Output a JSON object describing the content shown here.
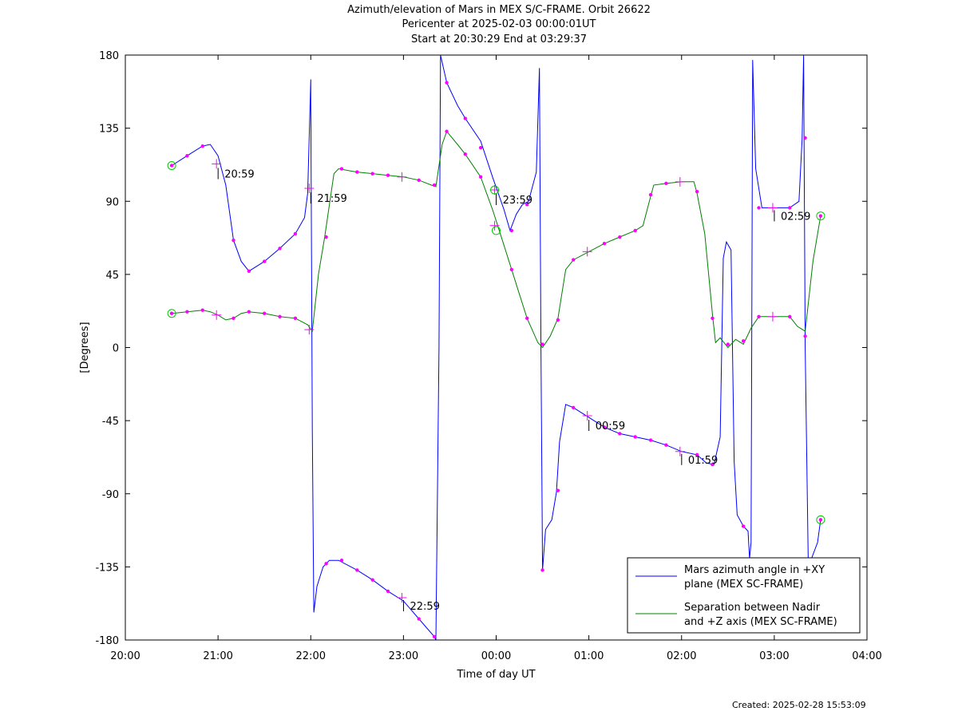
{
  "title": {
    "line1": "Azimuth/elevation of Mars in MEX S/C-FRAME.  Orbit 26622",
    "line2": "Pericenter at 2025-02-03 00:00:01UT",
    "line3": "Start at 20:30:29 End at 03:29:37"
  },
  "footer": {
    "created": "Created: 2025-02-28 15:53:09"
  },
  "colors": {
    "azimuth": "#0000ff",
    "separation": "#008000",
    "marker": "#ff00ff",
    "endpoint": "#00cc00",
    "axis": "#000000"
  },
  "chart_data": {
    "type": "line",
    "xlabel": "Time of day UT",
    "ylabel": "[Degrees]",
    "xlim": [
      "20:00",
      "04:00"
    ],
    "ylim": [
      -180,
      180
    ],
    "x_ticks": [
      "20:00",
      "21:00",
      "22:00",
      "23:00",
      "00:00",
      "01:00",
      "02:00",
      "03:00",
      "04:00"
    ],
    "y_ticks": [
      180,
      135,
      90,
      45,
      0,
      -45,
      -90,
      -135,
      -180
    ],
    "grid": false,
    "legend_position": "bottom-right",
    "time_labels": [
      {
        "text": "20:59",
        "t": "20:59",
        "y": 112
      },
      {
        "text": "21:59",
        "t": "21:59",
        "y": 97
      },
      {
        "text": "22:59",
        "t": "22:59",
        "y": -154
      },
      {
        "text": "23:59",
        "t": "23:59",
        "y": 96
      },
      {
        "text": "00:59",
        "t": "00:59",
        "y": -43
      },
      {
        "text": "01:59",
        "t": "01:59",
        "y": -64
      },
      {
        "text": "02:59",
        "t": "02:59",
        "y": 86
      }
    ],
    "series": [
      {
        "name": "Mars azimuth angle in +XY plane (MEX SC-FRAME)",
        "color": "#0000ff",
        "legend": [
          "Mars azimuth angle in +XY",
          "plane (MEX SC-FRAME)"
        ],
        "points": [
          [
            "20:30",
            112
          ],
          [
            "20:40",
            118
          ],
          [
            "20:50",
            124
          ],
          [
            "20:55",
            125
          ],
          [
            "21:00",
            118
          ],
          [
            "21:05",
            100
          ],
          [
            "21:10",
            66
          ],
          [
            "21:15",
            53
          ],
          [
            "21:20",
            47
          ],
          [
            "21:30",
            53
          ],
          [
            "21:40",
            61
          ],
          [
            "21:50",
            70
          ],
          [
            "21:56",
            80
          ],
          [
            "21:58",
            95
          ],
          [
            "22:00",
            165
          ],
          [
            "22:00",
            155
          ],
          [
            "22:01",
            -50
          ],
          [
            "22:02",
            -163
          ],
          [
            "22:04",
            -147
          ],
          [
            "22:08",
            -135
          ],
          [
            "22:12",
            -131
          ],
          [
            "22:18",
            -131
          ],
          [
            "22:30",
            -137
          ],
          [
            "22:40",
            -143
          ],
          [
            "22:50",
            -150
          ],
          [
            "23:00",
            -156
          ],
          [
            "23:10",
            -167
          ],
          [
            "23:20",
            -178
          ],
          [
            "23:21",
            -180
          ],
          [
            "23:23",
            0
          ],
          [
            "23:24",
            180
          ],
          [
            "23:28",
            163
          ],
          [
            "23:35",
            149
          ],
          [
            "23:40",
            141
          ],
          [
            "23:50",
            127
          ],
          [
            "23:58",
            104
          ],
          [
            "00:05",
            85
          ],
          [
            "00:09",
            72
          ],
          [
            "00:13",
            82
          ],
          [
            "00:17",
            88
          ],
          [
            "00:21",
            90
          ],
          [
            "00:26",
            108
          ],
          [
            "00:28",
            172
          ],
          [
            "00:29",
            0
          ],
          [
            "00:30",
            -137
          ],
          [
            "00:32",
            -112
          ],
          [
            "00:36",
            -106
          ],
          [
            "00:39",
            -89
          ],
          [
            "00:41",
            -58
          ],
          [
            "00:45",
            -35
          ],
          [
            "00:50",
            -37
          ],
          [
            "00:55",
            -40
          ],
          [
            "01:00",
            -43
          ],
          [
            "01:10",
            -49
          ],
          [
            "01:20",
            -53
          ],
          [
            "01:30",
            -55
          ],
          [
            "01:40",
            -57
          ],
          [
            "01:50",
            -60
          ],
          [
            "02:00",
            -64
          ],
          [
            "02:10",
            -66
          ],
          [
            "02:16",
            -71
          ],
          [
            "02:21",
            -72
          ],
          [
            "02:25",
            -55
          ],
          [
            "02:27",
            55
          ],
          [
            "02:29",
            65
          ],
          [
            "02:32",
            60
          ],
          [
            "02:34",
            -70
          ],
          [
            "02:36",
            -103
          ],
          [
            "02:40",
            -110
          ],
          [
            "02:43",
            -113
          ],
          [
            "02:44",
            -130
          ],
          [
            "02:45",
            -120
          ],
          [
            "02:46",
            177
          ],
          [
            "02:48",
            110
          ],
          [
            "02:52",
            86
          ],
          [
            "03:00",
            86
          ],
          [
            "03:10",
            86
          ],
          [
            "03:16",
            90
          ],
          [
            "03:18",
            128
          ],
          [
            "03:19",
            180
          ],
          [
            "03:20",
            0
          ],
          [
            "03:22",
            -135
          ],
          [
            "03:28",
            -120
          ],
          [
            "03:30",
            -106
          ]
        ]
      },
      {
        "name": "Separation between Nadir and +Z axis (MEX SC-FRAME)",
        "color": "#008000",
        "legend": [
          "Separation between Nadir",
          "and +Z axis (MEX SC-FRAME)"
        ],
        "points": [
          [
            "20:30",
            21
          ],
          [
            "20:40",
            22
          ],
          [
            "20:50",
            23
          ],
          [
            "20:55",
            22
          ],
          [
            "21:00",
            20
          ],
          [
            "21:05",
            17
          ],
          [
            "21:10",
            18
          ],
          [
            "21:15",
            21
          ],
          [
            "21:20",
            22
          ],
          [
            "21:30",
            21
          ],
          [
            "21:40",
            19
          ],
          [
            "21:50",
            18
          ],
          [
            "21:58",
            14
          ],
          [
            "22:01",
            10
          ],
          [
            "22:05",
            45
          ],
          [
            "22:09",
            68
          ],
          [
            "22:15",
            107
          ],
          [
            "22:18",
            110
          ],
          [
            "22:30",
            108
          ],
          [
            "22:40",
            107
          ],
          [
            "22:50",
            106
          ],
          [
            "23:00",
            105
          ],
          [
            "23:10",
            103
          ],
          [
            "23:18",
            100
          ],
          [
            "23:21",
            99
          ],
          [
            "23:25",
            125
          ],
          [
            "23:28",
            133
          ],
          [
            "23:35",
            125
          ],
          [
            "23:40",
            119
          ],
          [
            "23:50",
            105
          ],
          [
            "23:58",
            84
          ],
          [
            "00:05",
            63
          ],
          [
            "00:10",
            48
          ],
          [
            "00:15",
            33
          ],
          [
            "00:20",
            18
          ],
          [
            "00:27",
            3
          ],
          [
            "00:30",
            0
          ],
          [
            "00:35",
            7
          ],
          [
            "00:40",
            18
          ],
          [
            "00:45",
            48
          ],
          [
            "00:50",
            54
          ],
          [
            "01:00",
            59
          ],
          [
            "01:10",
            64
          ],
          [
            "01:20",
            68
          ],
          [
            "01:30",
            72
          ],
          [
            "01:35",
            75
          ],
          [
            "01:40",
            93
          ],
          [
            "01:42",
            100
          ],
          [
            "01:50",
            101
          ],
          [
            "02:00",
            102
          ],
          [
            "02:08",
            102
          ],
          [
            "02:10",
            95
          ],
          [
            "02:15",
            70
          ],
          [
            "02:20",
            20
          ],
          [
            "02:22",
            3
          ],
          [
            "02:25",
            6
          ],
          [
            "02:30",
            0
          ],
          [
            "02:35",
            5
          ],
          [
            "02:40",
            2
          ],
          [
            "02:45",
            12
          ],
          [
            "02:50",
            19
          ],
          [
            "03:00",
            19
          ],
          [
            "03:10",
            19
          ],
          [
            "03:15",
            13
          ],
          [
            "03:20",
            10
          ],
          [
            "03:25",
            53
          ],
          [
            "03:30",
            81
          ]
        ]
      }
    ],
    "markers": {
      "azimuth": [
        [
          "20:30",
          112
        ],
        [
          "20:40",
          118
        ],
        [
          "20:50",
          124
        ],
        [
          "21:10",
          66
        ],
        [
          "21:20",
          47
        ],
        [
          "21:30",
          53
        ],
        [
          "21:40",
          61
        ],
        [
          "21:50",
          70
        ],
        [
          "22:10",
          -133
        ],
        [
          "22:20",
          -131
        ],
        [
          "22:30",
          -137
        ],
        [
          "22:40",
          -143
        ],
        [
          "22:50",
          -150
        ],
        [
          "23:10",
          -167
        ],
        [
          "23:20",
          -178
        ],
        [
          "23:28",
          163
        ],
        [
          "23:40",
          141
        ],
        [
          "23:50",
          123
        ],
        [
          "00:10",
          72
        ],
        [
          "00:20",
          88
        ],
        [
          "00:30",
          -137
        ],
        [
          "00:40",
          -88
        ],
        [
          "00:50",
          -37
        ],
        [
          "01:10",
          -49
        ],
        [
          "01:20",
          -53
        ],
        [
          "01:30",
          -55
        ],
        [
          "01:40",
          -57
        ],
        [
          "01:50",
          -60
        ],
        [
          "02:10",
          -66
        ],
        [
          "02:20",
          -72
        ],
        [
          "02:40",
          -110
        ],
        [
          "02:50",
          86
        ],
        [
          "03:10",
          86
        ],
        [
          "03:20",
          129
        ],
        [
          "03:30",
          -106
        ]
      ],
      "separation": [
        [
          "20:30",
          21
        ],
        [
          "20:40",
          22
        ],
        [
          "20:50",
          23
        ],
        [
          "21:10",
          18
        ],
        [
          "21:20",
          22
        ],
        [
          "21:30",
          21
        ],
        [
          "21:40",
          19
        ],
        [
          "21:50",
          18
        ],
        [
          "22:10",
          68
        ],
        [
          "22:20",
          110
        ],
        [
          "22:30",
          108
        ],
        [
          "22:40",
          107
        ],
        [
          "22:50",
          106
        ],
        [
          "23:10",
          103
        ],
        [
          "23:20",
          100
        ],
        [
          "23:28",
          133
        ],
        [
          "23:40",
          119
        ],
        [
          "23:50",
          105
        ],
        [
          "00:10",
          48
        ],
        [
          "00:20",
          18
        ],
        [
          "00:30",
          2
        ],
        [
          "00:40",
          17
        ],
        [
          "00:50",
          54
        ],
        [
          "01:10",
          64
        ],
        [
          "01:20",
          68
        ],
        [
          "01:30",
          72
        ],
        [
          "01:40",
          94
        ],
        [
          "01:50",
          101
        ],
        [
          "02:10",
          96
        ],
        [
          "02:20",
          18
        ],
        [
          "02:30",
          2
        ],
        [
          "02:40",
          4
        ],
        [
          "02:50",
          19
        ],
        [
          "03:10",
          19
        ],
        [
          "03:20",
          7
        ],
        [
          "03:30",
          81
        ]
      ]
    },
    "crosses": [
      [
        "20:59",
        113
      ],
      [
        "21:59",
        98
      ],
      [
        "22:59",
        -154
      ],
      [
        "23:59",
        97
      ],
      [
        "00:59",
        -42
      ],
      [
        "01:59",
        -64
      ],
      [
        "02:59",
        86
      ],
      [
        "20:59",
        20
      ],
      [
        "21:59",
        11
      ],
      [
        "22:59",
        105
      ],
      [
        "23:59",
        75
      ],
      [
        "00:59",
        59
      ],
      [
        "01:59",
        102
      ],
      [
        "02:59",
        19
      ]
    ],
    "endpoints": [
      [
        "20:30",
        112
      ],
      [
        "20:30",
        21
      ],
      [
        "00:00",
        72
      ],
      [
        "23:59",
        97
      ],
      [
        "03:30",
        81
      ],
      [
        "03:30",
        -106
      ]
    ]
  }
}
